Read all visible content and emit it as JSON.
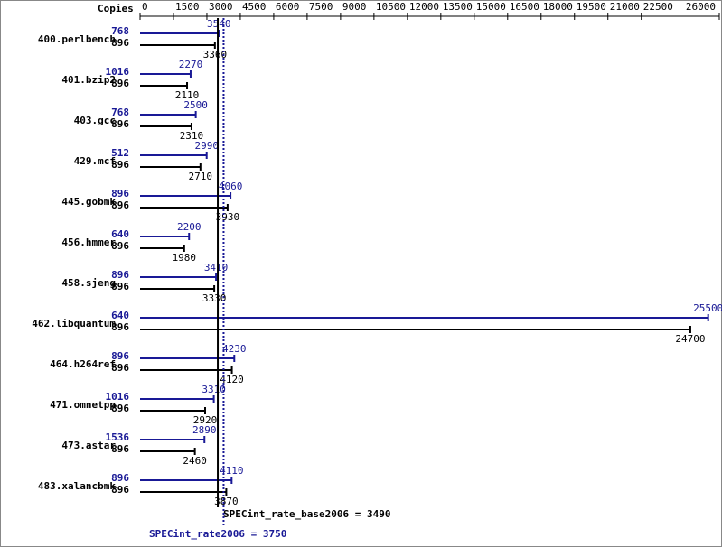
{
  "chart_data": {
    "type": "bar",
    "orientation": "horizontal",
    "axis_label": "Copies",
    "categories": [
      "400.perlbench",
      "401.bzip2",
      "403.gcc",
      "429.mcf",
      "445.gobmk",
      "456.hmmer",
      "458.sjeng",
      "462.libquantum",
      "464.h264ref",
      "471.omnetpp",
      "473.astar",
      "483.xalancbmk"
    ],
    "series": [
      {
        "color": "#191996",
        "copies": [
          768,
          1016,
          768,
          512,
          896,
          640,
          896,
          640,
          896,
          1016,
          1536,
          896
        ],
        "values": [
          3540,
          2270,
          2500,
          2990,
          4060,
          2200,
          3410,
          25500,
          4230,
          3310,
          2890,
          4110
        ]
      },
      {
        "color": "#000000",
        "copies": [
          896,
          896,
          896,
          896,
          896,
          896,
          896,
          896,
          896,
          896,
          896,
          896
        ],
        "values": [
          3360,
          2110,
          2310,
          2710,
          3930,
          1980,
          3330,
          24700,
          4120,
          2920,
          2460,
          3870
        ]
      }
    ],
    "xlim": [
      0,
      26000
    ],
    "xticks": [
      0,
      1500,
      3000,
      4500,
      6000,
      7500,
      9000,
      10500,
      12000,
      13500,
      15000,
      16500,
      18000,
      19500,
      21000,
      22500,
      26000
    ],
    "reference_lines": [
      {
        "value": 3490,
        "label": "SPECint_rate_base2006 = 3490",
        "color": "#000000",
        "style": "solid"
      },
      {
        "value": 3750,
        "label": "SPECint_rate2006 = 3750",
        "color": "#191996",
        "style": "dotted"
      }
    ]
  }
}
